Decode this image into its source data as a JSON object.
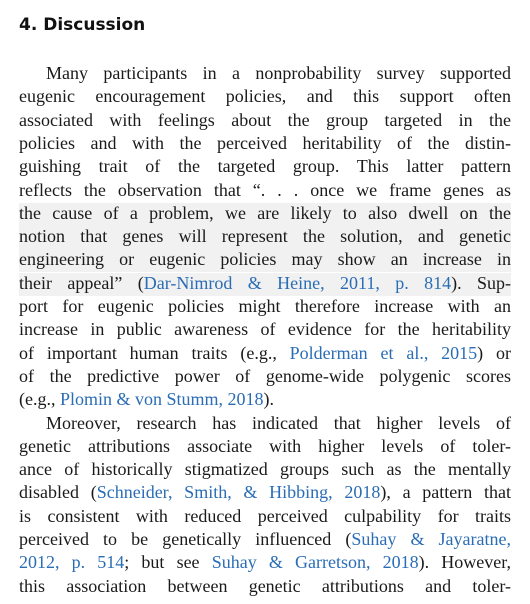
{
  "section": {
    "heading": "4.  Discussion",
    "paragraphs": [
      {
        "lines": [
          [
            "Many participants in a nonprobability survey supported"
          ],
          [
            "eugenic encouragement policies, and this support often"
          ],
          [
            "associated with feelings about the group targeted in the"
          ],
          [
            "policies and with the perceived heritability of the distin-"
          ],
          [
            "guishing trait of the targeted group. This latter pattern"
          ],
          [
            "reflects the observation that “. . . once we frame genes as"
          ],
          [
            "the cause of a problem, we are likely to also dwell on the"
          ],
          [
            "notion that genes will represent the solution, and genetic"
          ],
          [
            "engineering or eugenic policies may show an increase in"
          ],
          [
            "their appeal” (",
            {
              "cite": "Dar-Nimrod & Heine, 2011, p. 814"
            },
            "). Sup-"
          ],
          [
            "port for eugenic policies might therefore increase with an"
          ],
          [
            "increase in public awareness of evidence for the heritability"
          ],
          [
            "of important human traits (e.g., ",
            {
              "cite": "Polderman et al., 2015"
            },
            ") or"
          ],
          [
            "of the predictive power of genome-wide polygenic scores"
          ],
          [
            "(e.g., ",
            {
              "cite": "Plomin & von Stumm, 2018"
            },
            ")."
          ]
        ]
      },
      {
        "lines": [
          [
            "Moreover, research has indicated that higher levels of"
          ],
          [
            "genetic attributions associate with higher levels of toler-"
          ],
          [
            "ance of historically stigmatized groups such as the mentally"
          ],
          [
            "disabled (",
            {
              "cite": "Schneider, Smith, & Hibbing, 2018"
            },
            "), a pattern that"
          ],
          [
            "is consistent with reduced perceived culpability for traits"
          ],
          [
            "perceived to be genetically influenced (",
            {
              "cite": "Suhay & Jayaratne,"
            }
          ],
          [
            {
              "cite": "2012, p. 514"
            },
            "; but see ",
            {
              "cite": "Suhay & Garretson, 2018"
            },
            "). However,"
          ],
          [
            "this association between genetic attributions and toler-"
          ]
        ]
      }
    ]
  }
}
